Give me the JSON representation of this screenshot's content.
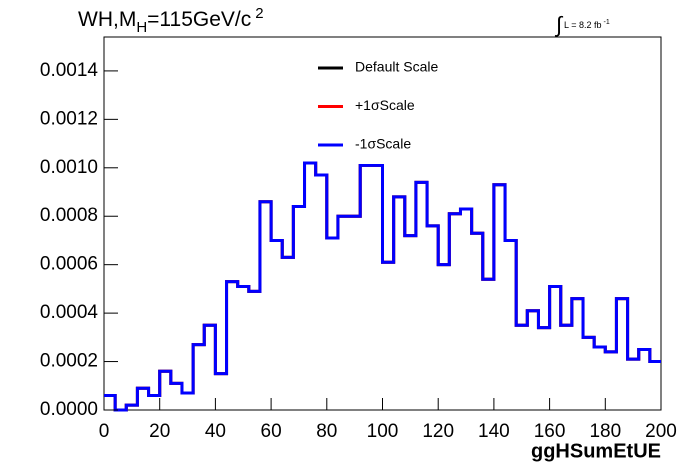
{
  "chart_data": {
    "type": "histogram",
    "title_parts": [
      "WH,M",
      "H",
      "=115GeV/c",
      "2"
    ],
    "annotation_parts": [
      "∫",
      "L = 8.2 fb",
      "-1"
    ],
    "x_label": "ggHSumEtUE",
    "bins": [
      0,
      4,
      8,
      12,
      16,
      20,
      24,
      28,
      32,
      36,
      40,
      44,
      48,
      52,
      56,
      60,
      64,
      68,
      72,
      76,
      80,
      84,
      88,
      92,
      96,
      100,
      104,
      108,
      112,
      116,
      120,
      124,
      128,
      132,
      136,
      140,
      144,
      148,
      152,
      156,
      160,
      164,
      168,
      172,
      176,
      180,
      184,
      188,
      192,
      196,
      200
    ],
    "series": [
      {
        "name": "Default Scale",
        "color": "#000000",
        "values": [
          6e-05,
          0,
          2e-05,
          9e-05,
          6e-05,
          0.00016,
          0.00011,
          7e-05,
          0.00027,
          0.00035,
          0.00015,
          0.00053,
          0.00051,
          0.00049,
          0.00086,
          0.0007,
          0.00063,
          0.00084,
          0.00102,
          0.00097,
          0.00071,
          0.0008,
          0.0008,
          0.00101,
          0.00101,
          0.00061,
          0.00088,
          0.00072,
          0.00094,
          0.00076,
          0.0006,
          0.00081,
          0.00083,
          0.00073,
          0.00054,
          0.00093,
          0.0007,
          0.00035,
          0.00041,
          0.00034,
          0.00051,
          0.00035,
          0.00046,
          0.0003,
          0.00026,
          0.00024,
          0.00046,
          0.00021,
          0.00025,
          0.0002
        ]
      },
      {
        "name": "+1σScale",
        "color": "#ff0000",
        "values": [
          6e-05,
          0,
          2e-05,
          9e-05,
          6e-05,
          0.00016,
          0.00011,
          7e-05,
          0.00027,
          0.00035,
          0.00015,
          0.00053,
          0.00051,
          0.00049,
          0.00086,
          0.0007,
          0.00063,
          0.00084,
          0.00102,
          0.00097,
          0.00071,
          0.0008,
          0.0008,
          0.00101,
          0.00101,
          0.00061,
          0.00088,
          0.00072,
          0.00094,
          0.00076,
          0.0006,
          0.00081,
          0.00083,
          0.00073,
          0.00054,
          0.00093,
          0.0007,
          0.00035,
          0.00041,
          0.00034,
          0.00051,
          0.00035,
          0.00046,
          0.0003,
          0.00026,
          0.00024,
          0.00046,
          0.00021,
          0.00025,
          0.0002
        ]
      },
      {
        "name": "-1σScale",
        "color": "#0000ff",
        "values": [
          6e-05,
          0,
          2e-05,
          9e-05,
          6e-05,
          0.00016,
          0.00011,
          7e-05,
          0.00027,
          0.00035,
          0.00015,
          0.00053,
          0.00051,
          0.00049,
          0.00086,
          0.0007,
          0.00063,
          0.00084,
          0.00102,
          0.00097,
          0.00071,
          0.0008,
          0.0008,
          0.00101,
          0.00101,
          0.00061,
          0.00088,
          0.00072,
          0.00094,
          0.00076,
          0.0006,
          0.00081,
          0.00083,
          0.00073,
          0.00054,
          0.00093,
          0.0007,
          0.00035,
          0.00041,
          0.00034,
          0.00051,
          0.00035,
          0.00046,
          0.0003,
          0.00026,
          0.00024,
          0.00046,
          0.00021,
          0.00025,
          0.0002
        ]
      }
    ],
    "xlim": [
      0,
      200
    ],
    "xticks": [
      0,
      20,
      40,
      60,
      80,
      100,
      120,
      140,
      160,
      180,
      200
    ],
    "ylim": [
      0,
      0.00154
    ],
    "yticks": [
      {
        "value": 0,
        "label": "0.0000"
      },
      {
        "value": 0.0002,
        "label": "0.0002"
      },
      {
        "value": 0.0004,
        "label": "0.0004"
      },
      {
        "value": 0.0006,
        "label": "0.0006"
      },
      {
        "value": 0.0008,
        "label": "0.0008"
      },
      {
        "value": 0.001,
        "label": "0.0010"
      },
      {
        "value": 0.0012,
        "label": "0.0012"
      },
      {
        "value": 0.0014,
        "label": "0.0014"
      }
    ],
    "legend": "top-center"
  }
}
